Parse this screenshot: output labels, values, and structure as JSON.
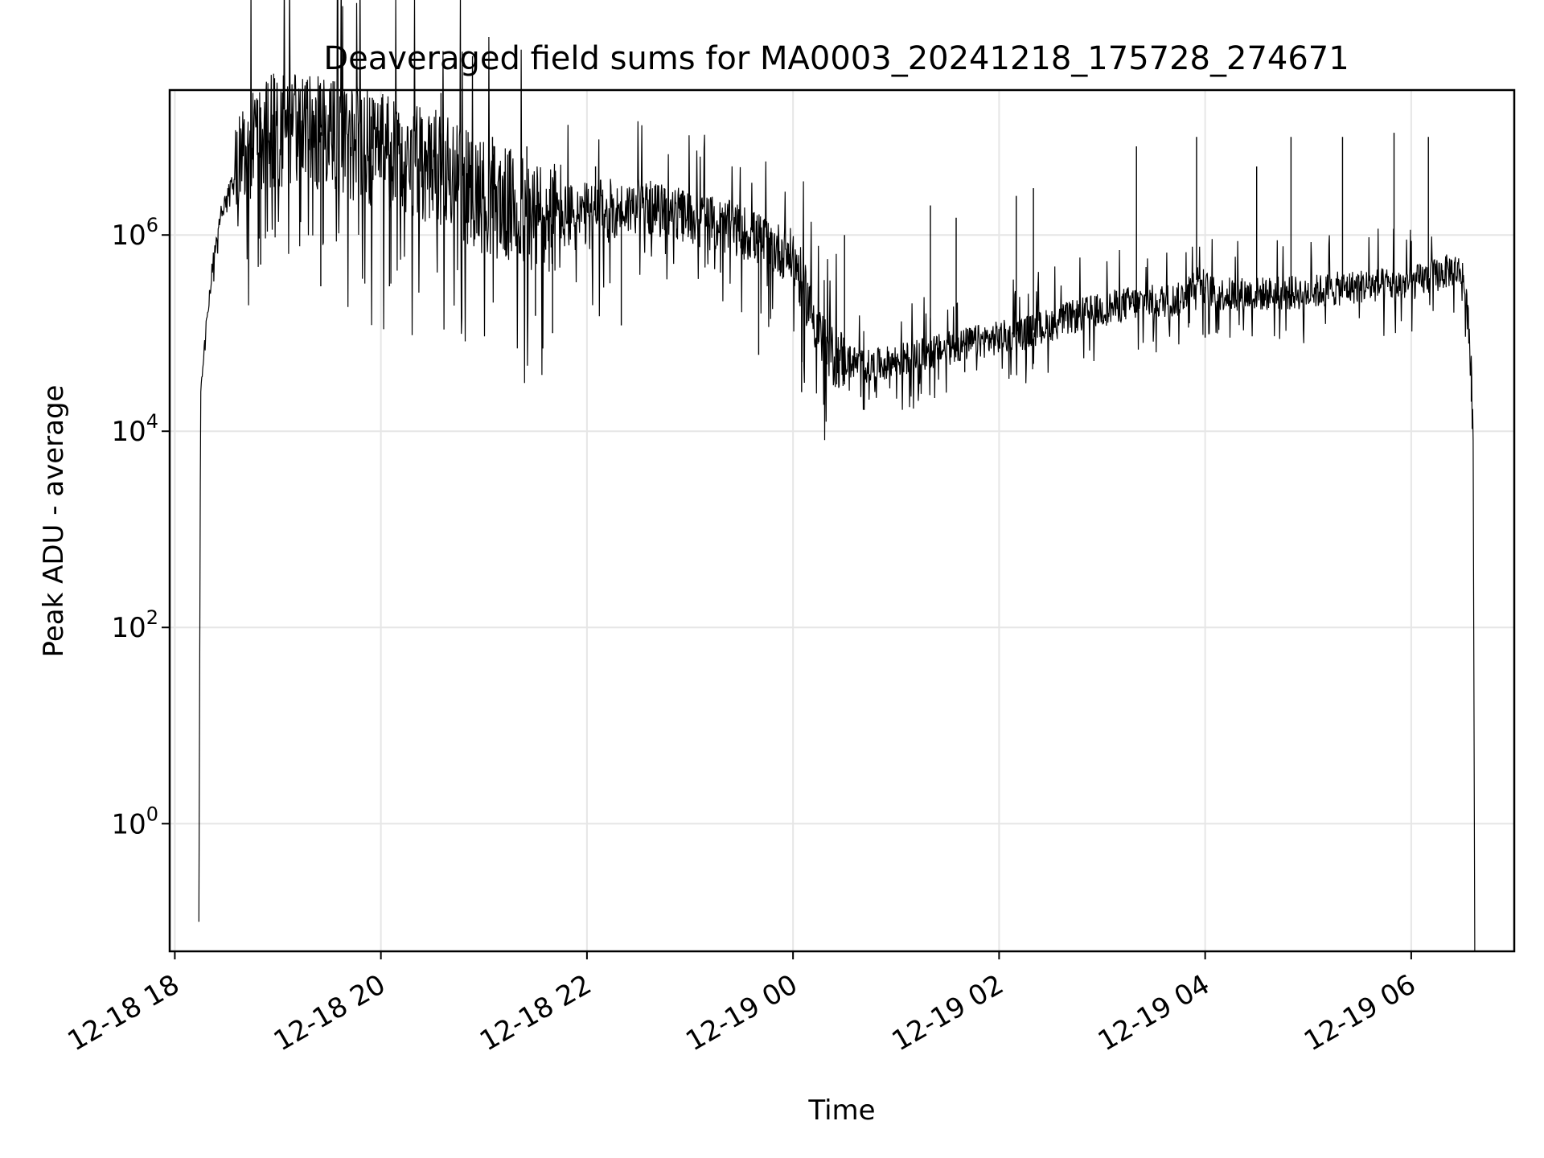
{
  "chart_data": {
    "type": "line",
    "title": "Deaveraged field sums for MA0003_20241218_175728_274671",
    "xlabel": "Time",
    "ylabel": "Peak ADU - average",
    "x_scale": "time",
    "y_scale": "log",
    "xlim": [
      "2024-12-18 17:57",
      "2024-12-19 07:00"
    ],
    "ylim": [
      0.05,
      30000000
    ],
    "grid": true,
    "legend": null,
    "line_color": "#000000",
    "grid_color": "#e6e6e6",
    "x_ticks": [
      {
        "value": "2024-12-18 18:00",
        "label": "12-18 18"
      },
      {
        "value": "2024-12-18 20:00",
        "label": "12-18 20"
      },
      {
        "value": "2024-12-18 22:00",
        "label": "12-18 22"
      },
      {
        "value": "2024-12-19 00:00",
        "label": "12-19 00"
      },
      {
        "value": "2024-12-19 02:00",
        "label": "12-19 02"
      },
      {
        "value": "2024-12-19 04:00",
        "label": "12-19 04"
      },
      {
        "value": "2024-12-19 06:00",
        "label": "12-19 06"
      }
    ],
    "y_ticks": [
      {
        "value": 1,
        "base": "10",
        "exp": "0"
      },
      {
        "value": 100,
        "base": "10",
        "exp": "2"
      },
      {
        "value": 10000,
        "base": "10",
        "exp": "4"
      },
      {
        "value": 1000000,
        "base": "10",
        "exp": "6"
      }
    ],
    "series": [
      {
        "baseline": [
          {
            "t": "2024-12-18 18:14",
            "v": 0.1
          },
          {
            "t": "2024-12-18 18:15",
            "v": 20000
          },
          {
            "t": "2024-12-18 18:18",
            "v": 100000
          },
          {
            "t": "2024-12-18 18:22",
            "v": 500000
          },
          {
            "t": "2024-12-18 18:26",
            "v": 1500000
          },
          {
            "t": "2024-12-18 18:35",
            "v": 4000000
          },
          {
            "t": "2024-12-18 18:45",
            "v": 8000000
          },
          {
            "t": "2024-12-18 19:00",
            "v": 12000000
          },
          {
            "t": "2024-12-18 19:30",
            "v": 11000000
          },
          {
            "t": "2024-12-18 20:00",
            "v": 7000000
          },
          {
            "t": "2024-12-18 20:30",
            "v": 5000000
          },
          {
            "t": "2024-12-18 21:00",
            "v": 2500000
          },
          {
            "t": "2024-12-18 21:30",
            "v": 1500000
          },
          {
            "t": "2024-12-18 22:00",
            "v": 1500000
          },
          {
            "t": "2024-12-18 22:30",
            "v": 2000000
          },
          {
            "t": "2024-12-18 23:00",
            "v": 1500000
          },
          {
            "t": "2024-12-18 23:30",
            "v": 1100000
          },
          {
            "t": "2024-12-19 00:00",
            "v": 600000
          },
          {
            "t": "2024-12-19 00:20",
            "v": 60000
          },
          {
            "t": "2024-12-19 00:45",
            "v": 45000
          },
          {
            "t": "2024-12-19 01:15",
            "v": 60000
          },
          {
            "t": "2024-12-19 01:45",
            "v": 80000
          },
          {
            "t": "2024-12-19 02:15",
            "v": 100000
          },
          {
            "t": "2024-12-19 02:45",
            "v": 150000
          },
          {
            "t": "2024-12-19 03:15",
            "v": 200000
          },
          {
            "t": "2024-12-19 03:45",
            "v": 220000
          },
          {
            "t": "2024-12-19 03:55",
            "v": 350000
          },
          {
            "t": "2024-12-19 04:05",
            "v": 250000
          },
          {
            "t": "2024-12-19 04:30",
            "v": 250000
          },
          {
            "t": "2024-12-19 05:00",
            "v": 260000
          },
          {
            "t": "2024-12-19 05:30",
            "v": 300000
          },
          {
            "t": "2024-12-19 06:00",
            "v": 320000
          },
          {
            "t": "2024-12-19 06:25",
            "v": 450000
          },
          {
            "t": "2024-12-19 06:30",
            "v": 400000
          },
          {
            "t": "2024-12-19 06:34",
            "v": 100000
          },
          {
            "t": "2024-12-19 06:36",
            "v": 20000
          },
          {
            "t": "2024-12-19 06:37",
            "v": 0.05
          }
        ],
        "spikes": [
          {
            "t": "2024-12-18 18:50",
            "v": 20000000
          },
          {
            "t": "2024-12-18 19:20",
            "v": 18000000
          },
          {
            "t": "2024-12-18 19:55",
            "v": 25000000
          },
          {
            "t": "2024-12-18 20:35",
            "v": 28000000
          },
          {
            "t": "2024-12-18 21:05",
            "v": 10000000
          },
          {
            "t": "2024-12-18 21:25",
            "v": 8000000
          },
          {
            "t": "2024-12-18 22:05",
            "v": 5000000
          },
          {
            "t": "2024-12-18 22:45",
            "v": 3000000
          },
          {
            "t": "2024-12-19 00:30",
            "v": 1000000
          },
          {
            "t": "2024-12-19 01:20",
            "v": 2000000
          },
          {
            "t": "2024-12-19 01:35",
            "v": 1500000
          },
          {
            "t": "2024-12-19 02:10",
            "v": 2500000
          },
          {
            "t": "2024-12-19 02:20",
            "v": 3000000
          },
          {
            "t": "2024-12-19 03:20",
            "v": 8000000
          },
          {
            "t": "2024-12-19 03:55",
            "v": 10000000
          },
          {
            "t": "2024-12-19 04:30",
            "v": 5000000
          },
          {
            "t": "2024-12-19 04:50",
            "v": 10000000
          },
          {
            "t": "2024-12-19 05:20",
            "v": 10000000
          },
          {
            "t": "2024-12-19 05:50",
            "v": 11000000
          },
          {
            "t": "2024-12-19 06:10",
            "v": 10000000
          }
        ],
        "dips": [
          {
            "t": "2024-12-18 18:50",
            "v": 500000
          },
          {
            "t": "2024-12-18 19:25",
            "v": 300000
          },
          {
            "t": "2024-12-18 20:05",
            "v": 300000
          },
          {
            "t": "2024-12-18 21:30",
            "v": 150000
          },
          {
            "t": "2024-12-18 21:40",
            "v": 100000
          },
          {
            "t": "2024-12-18 22:20",
            "v": 120000
          },
          {
            "t": "2024-12-18 23:40",
            "v": 60000
          },
          {
            "t": "2024-12-19 00:05",
            "v": 25000
          },
          {
            "t": "2024-12-19 00:30",
            "v": 30000
          },
          {
            "t": "2024-12-19 01:40",
            "v": 40000
          },
          {
            "t": "2024-12-19 04:00",
            "v": 90000
          },
          {
            "t": "2024-12-19 06:35",
            "v": 20000
          }
        ]
      }
    ]
  }
}
